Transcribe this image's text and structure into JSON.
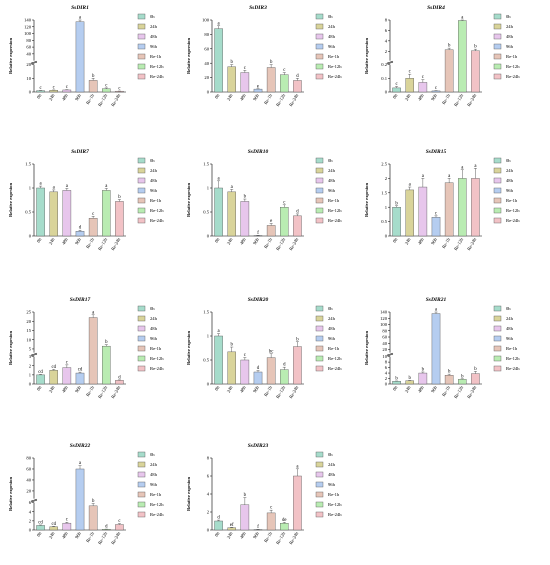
{
  "colors": {
    "0h": "#a6dccb",
    "24h": "#d9d49a",
    "48h": "#e7c6ec",
    "96h": "#b5cdf0",
    "Re-1h": "#e6c5b8",
    "Re-12h": "#b9ecb2",
    "Re-24h": "#f2c2c6"
  },
  "chart_data": [
    {
      "type": "bar",
      "title": "SsDIR1",
      "ylabel": "Relative expresion",
      "categories": [
        "0h",
        "24h",
        "48h",
        "96h",
        "Re-1h",
        "Re-12h",
        "Re-24h"
      ],
      "series": [
        {
          "values": [
            1,
            1.3,
            1.5,
            135,
            8.5,
            2.4,
            0.6
          ]
        }
      ],
      "errors": [
        0.1,
        0.2,
        0.2,
        15,
        1.5,
        0.6,
        0.1
      ],
      "labels": [
        "c",
        "c",
        "c",
        "a",
        "b",
        "c",
        "c"
      ],
      "axis": {
        "low": [
          0,
          20
        ],
        "high": [
          20,
          140
        ],
        "lowTicks": [
          0,
          10,
          20
        ],
        "highTicks": [
          40,
          60,
          80,
          100,
          120,
          140
        ]
      },
      "legend": [
        "0h",
        "24h",
        "48h",
        "96h",
        "Re-1h",
        "Re-12h",
        "Re-24h"
      ]
    },
    {
      "type": "bar",
      "title": "SsDIR3",
      "ylabel": "Relative expresion",
      "categories": [
        "0h",
        "24h",
        "48h",
        "96h",
        "Re-1h",
        "Re-12h",
        "Re-24h"
      ],
      "series": [
        {
          "values": [
            88,
            35,
            27,
            4,
            34,
            24,
            16
          ]
        }
      ],
      "errors": [
        4,
        3,
        3,
        0.5,
        4,
        3,
        3
      ],
      "labels": [
        "a",
        "b",
        "c",
        "e",
        "b",
        "c",
        "d"
      ],
      "axis": {
        "low": [
          0,
          100
        ],
        "lowTicks": [
          0,
          20,
          40,
          60,
          80,
          100
        ]
      },
      "legend": [
        "0h",
        "24h",
        "48h",
        "96h",
        "Re-1h",
        "Re-12h",
        "Re-24h"
      ]
    },
    {
      "type": "bar",
      "title": "SsDIR4",
      "ylabel": "Relative expresion",
      "categories": [
        "0h",
        "24h",
        "48h",
        "96h",
        "Re-1h",
        "Re-12h",
        "Re-24h"
      ],
      "series": [
        {
          "values": [
            0.03,
            0.1,
            0.07,
            0.008,
            2.3,
            7.9,
            2.1
          ]
        }
      ],
      "errors": [
        0.01,
        0.03,
        0.02,
        0.002,
        0.3,
        0.6,
        0.3
      ],
      "labels": [
        "c",
        "c",
        "c",
        "c",
        "b",
        "a",
        "b"
      ],
      "axis": {
        "low": [
          0,
          0.2
        ],
        "high": [
          0.2,
          8
        ],
        "lowTicks": [
          0,
          0.1,
          0.2
        ],
        "highTicks": [
          2,
          4,
          6,
          8
        ]
      },
      "legend": [
        "0h",
        "24h",
        "48h",
        "96h",
        "Re-1h",
        "Re-12h",
        "Re-24h"
      ]
    },
    {
      "type": "bar",
      "title": "SsDIR7",
      "ylabel": "Relative exprsion",
      "categories": [
        "0h",
        "24h",
        "48h",
        "96h",
        "Re-1h",
        "Re-12h",
        "Re-24h"
      ],
      "series": [
        {
          "values": [
            1.0,
            0.92,
            0.95,
            0.1,
            0.37,
            0.95,
            0.72
          ]
        }
      ],
      "errors": [
        0.04,
        0.04,
        0.04,
        0.02,
        0.04,
        0.04,
        0.04
      ],
      "labels": [
        "a",
        "a",
        "a",
        "d",
        "c",
        "a",
        "b"
      ],
      "axis": {
        "low": [
          0,
          1.5
        ],
        "lowTicks": [
          0,
          0.5,
          1.0,
          1.5
        ]
      },
      "legend": [
        "0h",
        "24h",
        "48h",
        "96h",
        "Re-1h",
        "Re-12h",
        "Re-24h"
      ]
    },
    {
      "type": "bar",
      "title": "SsDIR10",
      "ylabel": "Relative exprsion",
      "categories": [
        "0h",
        "24h",
        "48h",
        "96h",
        "Re-1h",
        "Re-12h",
        "Re-24h"
      ],
      "series": [
        {
          "values": [
            1.0,
            0.92,
            0.72,
            0.01,
            0.22,
            0.6,
            0.42
          ]
        }
      ],
      "errors": [
        0.15,
        0.05,
        0.05,
        0.005,
        0.04,
        0.05,
        0.04
      ],
      "labels": [
        "a",
        "a",
        "b",
        "f",
        "e",
        "c",
        "d"
      ],
      "axis": {
        "low": [
          0,
          1.5
        ],
        "lowTicks": [
          0,
          0.5,
          1.0,
          1.5
        ]
      },
      "legend": [
        "0h",
        "24h",
        "48h",
        "96h",
        "Re-1h",
        "Re-12h",
        "Re-24h"
      ]
    },
    {
      "type": "bar",
      "title": "SsDIR15",
      "ylabel": "Relative exprsion",
      "categories": [
        "0h",
        "24h",
        "48h",
        "96h",
        "Re-1h",
        "Re-12h",
        "Re-24h"
      ],
      "series": [
        {
          "values": [
            1.0,
            1.6,
            1.7,
            0.65,
            1.85,
            2.0,
            2.0
          ]
        }
      ],
      "errors": [
        0.05,
        0.1,
        0.3,
        0.05,
        0.15,
        0.3,
        0.35
      ],
      "labels": [
        "b",
        "a",
        "a",
        "c",
        "a",
        "a",
        "a"
      ],
      "axis": {
        "low": [
          0,
          2.5
        ],
        "lowTicks": [
          0,
          0.5,
          1.0,
          1.5,
          2.0,
          2.5
        ]
      },
      "legend": [
        "0h",
        "24h",
        "48h",
        "96h",
        "Re-1h",
        "Re-12h",
        "Re-24h"
      ]
    },
    {
      "type": "bar",
      "title": "SsDIR17",
      "ylabel": "Relative exprsion",
      "categories": [
        "0h",
        "24h",
        "48h",
        "96h",
        "Re-1h",
        "Re-12h",
        "Re-24h"
      ],
      "series": [
        {
          "values": [
            1.0,
            1.5,
            1.8,
            1.2,
            22,
            6.5,
            0.4
          ]
        }
      ],
      "errors": [
        0.05,
        0.1,
        0.3,
        0.1,
        1.5,
        0.8,
        0.05
      ],
      "labels": [
        "cd",
        "cd",
        "c",
        "cd",
        "a",
        "b",
        "d"
      ],
      "axis": {
        "low": [
          0,
          3
        ],
        "high": [
          3,
          25
        ],
        "lowTicks": [
          0,
          1,
          2,
          3
        ],
        "highTicks": [
          5,
          10,
          15,
          20,
          25
        ]
      },
      "legend": [
        "0h",
        "24h",
        "48h",
        "96h",
        "Re-1h",
        "Re-12h",
        "Re-24h"
      ]
    },
    {
      "type": "bar",
      "title": "SsDIR20",
      "ylabel": "Relative exprsion",
      "categories": [
        "0h",
        "24h",
        "48h",
        "96h",
        "Re-1h",
        "Re-12h",
        "Re-24h"
      ],
      "series": [
        {
          "values": [
            1.0,
            0.67,
            0.5,
            0.25,
            0.55,
            0.3,
            0.78
          ]
        }
      ],
      "errors": [
        0.05,
        0.1,
        0.05,
        0.03,
        0.08,
        0.05,
        0.1
      ],
      "labels": [
        "a",
        "b",
        "c",
        "d",
        "bc",
        "d",
        "b"
      ],
      "axis": {
        "low": [
          0,
          1.5
        ],
        "lowTicks": [
          0,
          0.5,
          1.0,
          1.5
        ]
      },
      "legend": [
        "0h",
        "24h",
        "48h",
        "96h",
        "Re-1h",
        "Re-12h",
        "Re-24h"
      ]
    },
    {
      "type": "bar",
      "title": "SsDIR21",
      "ylabel": "Relative exprsion",
      "categories": [
        "0h",
        "24h",
        "48h",
        "96h",
        "Re-1h",
        "Re-12h",
        "Re-24h"
      ],
      "series": [
        {
          "values": [
            1.0,
            1.2,
            4.0,
            135,
            3.2,
            1.7,
            3.8
          ]
        }
      ],
      "errors": [
        0.1,
        0.1,
        0.4,
        10,
        0.4,
        0.2,
        0.8
      ],
      "labels": [
        "b",
        "b",
        "b",
        "a",
        "b",
        "b",
        "b"
      ],
      "axis": {
        "low": [
          0,
          10
        ],
        "high": [
          10,
          140
        ],
        "lowTicks": [
          0,
          2,
          4,
          6,
          8,
          10
        ],
        "highTicks": [
          20,
          40,
          60,
          80,
          100,
          120,
          140
        ]
      },
      "legend": [
        "0h",
        "24h",
        "48h",
        "96h",
        "Re-1h",
        "Re-12h",
        "Re-24h"
      ]
    },
    {
      "type": "bar",
      "title": "SsDIR22",
      "ylabel": "Relative exprsion",
      "categories": [
        "0h",
        "24h",
        "48h",
        "96h",
        "Re-1h",
        "Re-12h",
        "Re-24h"
      ],
      "series": [
        {
          "values": [
            1.0,
            0.7,
            1.5,
            60,
            5.3,
            0.15,
            1.2
          ]
        }
      ],
      "errors": [
        0.1,
        0.1,
        0.2,
        6,
        0.5,
        0.05,
        0.2
      ],
      "labels": [
        "cd",
        "cd",
        "c",
        "a",
        "b",
        "d",
        "c"
      ],
      "axis": {
        "low": [
          0,
          6
        ],
        "high": [
          6,
          80
        ],
        "lowTicks": [
          0,
          2,
          4,
          6
        ],
        "highTicks": [
          20,
          40,
          60,
          80
        ]
      },
      "legend": [
        "0h",
        "24h",
        "48h",
        "96h",
        "Re-1h",
        "Re-12h",
        "Re-24h"
      ]
    },
    {
      "type": "bar",
      "title": "SsDIR23",
      "ylabel": "Relative exprsion",
      "categories": [
        "0h",
        "24h",
        "48h",
        "96h",
        "Re-1h",
        "Re-12h",
        "Re-24h"
      ],
      "series": [
        {
          "values": [
            1.0,
            0.25,
            2.8,
            0.05,
            1.9,
            0.75,
            6.0
          ]
        }
      ],
      "errors": [
        0.1,
        0.05,
        0.8,
        0.02,
        0.3,
        0.1,
        0.8
      ],
      "labels": [
        "d",
        "ef",
        "b",
        "f",
        "c",
        "de",
        "a"
      ],
      "axis": {
        "low": [
          0,
          8
        ],
        "lowTicks": [
          0,
          2,
          4,
          6,
          8
        ]
      },
      "legend": [
        "0h",
        "24h",
        "48h",
        "96h",
        "Re-1h",
        "Re-12h",
        "Re-24h"
      ]
    }
  ]
}
